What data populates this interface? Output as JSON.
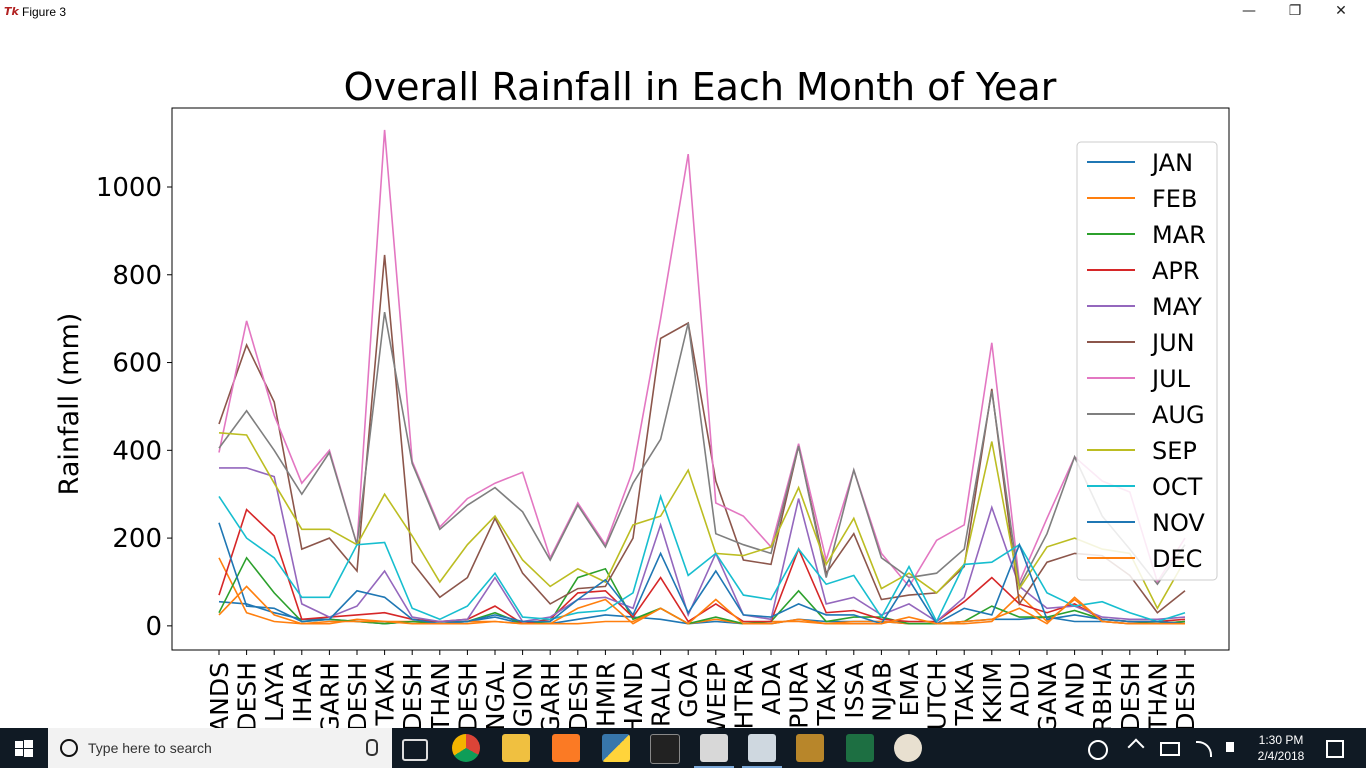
{
  "window": {
    "title": "Figure 3",
    "icon": "tk-feather-icon",
    "buttons": [
      "minimize",
      "restore",
      "close"
    ]
  },
  "chart_data": {
    "type": "line",
    "title": "Overall Rainfall in Each Month of Year",
    "xlabel": "",
    "ylabel": "Rainfall (mm)",
    "ylim": [
      -55,
      1180
    ],
    "yticks": [
      0,
      200,
      400,
      600,
      800,
      1000
    ],
    "grid": false,
    "legend_position": "top-right",
    "categories": [
      "ANDS",
      "DESH",
      "LAYA",
      "IHAR",
      "GARH",
      "DESH",
      "TAKA",
      "DESH",
      "THAN",
      "DESH",
      "NGAL",
      "GION",
      "GARH",
      "DESH",
      "HMIR",
      "HAND",
      "RALA",
      "GOA",
      "WEEP",
      "HTRA",
      "ADA",
      "PURA",
      "TAKA",
      "ISSA",
      "NJAB",
      "EMA",
      "UTCH",
      "TAKA",
      "KKIM",
      "ADU",
      "GANA",
      "AND",
      "RBHA",
      "DESH",
      "THAN",
      "DESH"
    ],
    "series": [
      {
        "name": "JAN",
        "color": "#1f77b4",
        "values": [
          55,
          50,
          30,
          15,
          15,
          10,
          5,
          10,
          10,
          10,
          20,
          5,
          5,
          15,
          25,
          20,
          15,
          5,
          10,
          5,
          5,
          15,
          10,
          10,
          10,
          5,
          5,
          10,
          15,
          15,
          20,
          10,
          10,
          5,
          5,
          10
        ]
      },
      {
        "name": "FEB",
        "color": "#ff7f0e",
        "values": [
          155,
          30,
          10,
          5,
          5,
          15,
          10,
          10,
          5,
          10,
          10,
          5,
          5,
          5,
          10,
          10,
          40,
          5,
          15,
          5,
          10,
          10,
          5,
          10,
          10,
          5,
          5,
          5,
          10,
          70,
          10,
          60,
          10,
          5,
          5,
          10
        ]
      },
      {
        "name": "MAR",
        "color": "#2ca02c",
        "values": [
          30,
          155,
          75,
          10,
          15,
          10,
          5,
          10,
          5,
          10,
          30,
          5,
          10,
          110,
          130,
          15,
          40,
          5,
          20,
          5,
          10,
          80,
          10,
          20,
          20,
          5,
          5,
          10,
          45,
          20,
          20,
          35,
          15,
          10,
          5,
          10
        ]
      },
      {
        "name": "APR",
        "color": "#d62728",
        "values": [
          70,
          265,
          205,
          15,
          20,
          25,
          30,
          15,
          10,
          15,
          45,
          5,
          15,
          75,
          80,
          20,
          110,
          10,
          50,
          10,
          10,
          175,
          30,
          35,
          15,
          10,
          10,
          55,
          110,
          50,
          30,
          50,
          15,
          10,
          10,
          15
        ]
      },
      {
        "name": "MAY",
        "color": "#9467bd",
        "values": [
          360,
          360,
          340,
          50,
          20,
          45,
          125,
          20,
          10,
          15,
          110,
          10,
          20,
          60,
          65,
          40,
          230,
          25,
          165,
          25,
          15,
          290,
          50,
          65,
          25,
          50,
          10,
          65,
          270,
          90,
          40,
          45,
          20,
          15,
          15,
          20
        ]
      },
      {
        "name": "JUN",
        "color": "#8c564b",
        "values": [
          460,
          640,
          510,
          175,
          200,
          125,
          845,
          145,
          65,
          110,
          245,
          120,
          50,
          85,
          90,
          200,
          655,
          690,
          330,
          150,
          140,
          410,
          120,
          210,
          60,
          70,
          75,
          135,
          540,
          50,
          145,
          165,
          160,
          115,
          30,
          80
        ]
      },
      {
        "name": "JUL",
        "color": "#e377c2",
        "values": [
          395,
          695,
          480,
          325,
          400,
          185,
          1130,
          375,
          225,
          290,
          325,
          350,
          155,
          280,
          185,
          355,
          700,
          1075,
          280,
          250,
          180,
          415,
          150,
          355,
          165,
          90,
          195,
          230,
          645,
          100,
          245,
          385,
          330,
          305,
          100,
          200
        ]
      },
      {
        "name": "AUG",
        "color": "#7f7f7f",
        "values": [
          405,
          490,
          400,
          300,
          395,
          185,
          715,
          370,
          220,
          275,
          315,
          260,
          150,
          275,
          180,
          325,
          425,
          690,
          210,
          185,
          165,
          410,
          110,
          355,
          155,
          110,
          120,
          175,
          535,
          90,
          210,
          385,
          250,
          175,
          95,
          185
        ]
      },
      {
        "name": "SEP",
        "color": "#bcbd22",
        "values": [
          440,
          435,
          325,
          220,
          220,
          185,
          300,
          205,
          100,
          185,
          250,
          150,
          90,
          130,
          100,
          230,
          250,
          355,
          165,
          160,
          180,
          315,
          140,
          245,
          85,
          120,
          75,
          140,
          420,
          85,
          180,
          200,
          175,
          165,
          40,
          150
        ]
      },
      {
        "name": "OCT",
        "color": "#17becf",
        "values": [
          295,
          200,
          155,
          65,
          65,
          185,
          190,
          40,
          15,
          45,
          120,
          20,
          15,
          30,
          35,
          75,
          295,
          115,
          165,
          70,
          60,
          175,
          95,
          115,
          20,
          135,
          10,
          140,
          145,
          185,
          75,
          45,
          55,
          30,
          10,
          30
        ]
      },
      {
        "name": "NOV",
        "color": "#1f77b4",
        "values": [
          235,
          45,
          40,
          10,
          15,
          80,
          65,
          15,
          5,
          10,
          25,
          10,
          10,
          60,
          105,
          25,
          165,
          30,
          125,
          25,
          20,
          50,
          25,
          25,
          5,
          105,
          5,
          40,
          25,
          185,
          15,
          25,
          15,
          10,
          10,
          5
        ]
      },
      {
        "name": "DEC",
        "color": "#ff7f0e",
        "values": [
          25,
          90,
          25,
          5,
          10,
          10,
          10,
          5,
          5,
          5,
          10,
          5,
          5,
          40,
          60,
          5,
          40,
          5,
          60,
          5,
          5,
          15,
          5,
          5,
          5,
          20,
          5,
          10,
          15,
          40,
          5,
          65,
          10,
          5,
          5,
          5
        ]
      }
    ]
  },
  "taskbar": {
    "search_placeholder": "Type here to search",
    "apps": [
      "task-view-icon",
      "chrome-icon",
      "file-explorer-icon",
      "xampp-icon",
      "python-icon",
      "cmd-icon",
      "python-file-icon",
      "python-idle-icon",
      "dosbox-icon",
      "excel-icon",
      "paint-icon"
    ],
    "time": "1:30 PM",
    "date": "2/4/2018"
  }
}
